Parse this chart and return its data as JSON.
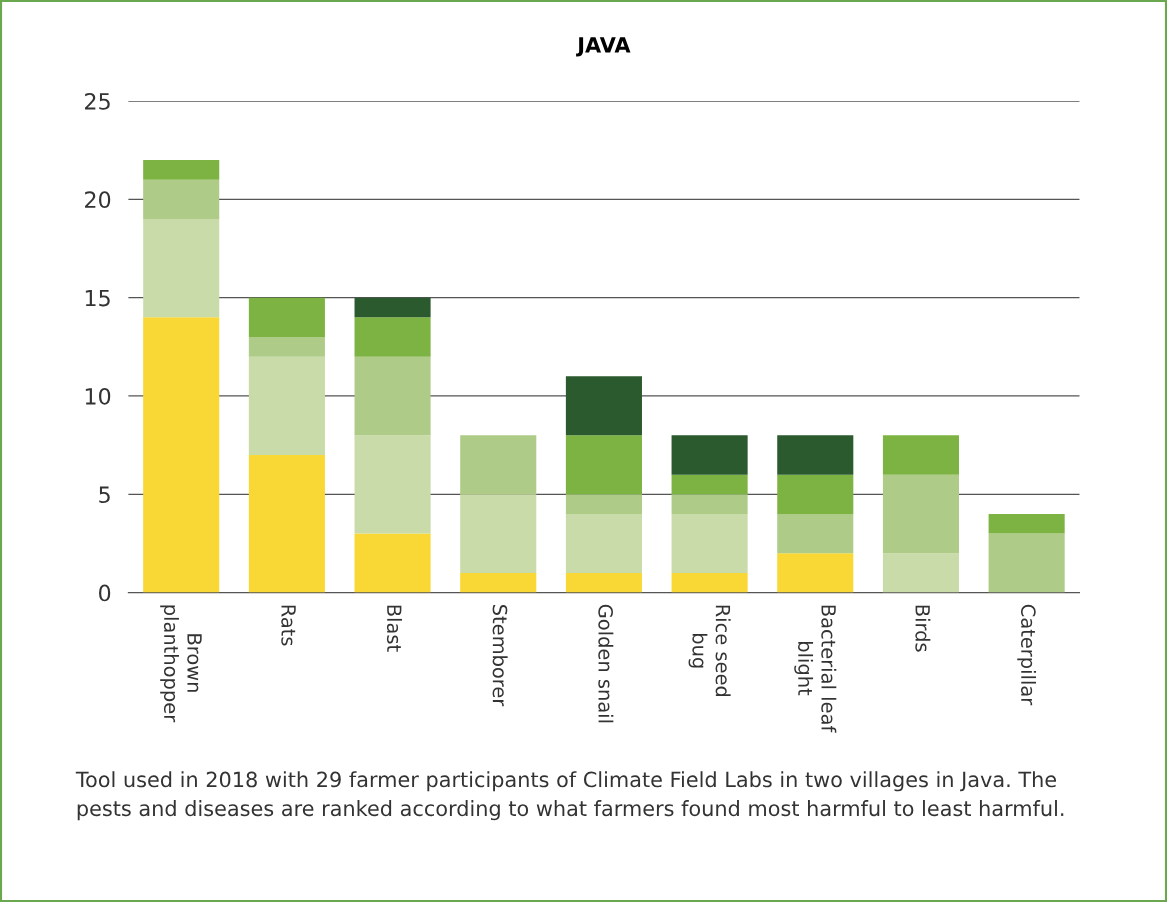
{
  "chart_data": {
    "type": "bar",
    "stacked": true,
    "title": "JAVA",
    "categories": [
      "Brown\nplanthopper",
      "Rats",
      "Blast",
      "Stemborer",
      "Golden snail",
      "Rice seed\nbug",
      "Bacterial leaf\nblight",
      "Birds",
      "Caterpillar"
    ],
    "series": [
      {
        "color": "#f9d835",
        "values": [
          14,
          7,
          3,
          1,
          1,
          1,
          2,
          0,
          0
        ]
      },
      {
        "color": "#c9dba8",
        "values": [
          5,
          5,
          5,
          4,
          3,
          3,
          0,
          2,
          0
        ]
      },
      {
        "color": "#aecb87",
        "values": [
          2,
          1,
          4,
          3,
          1,
          1,
          2,
          4,
          3
        ]
      },
      {
        "color": "#7cb342",
        "values": [
          1,
          2,
          2,
          0,
          3,
          1,
          2,
          2,
          1
        ]
      },
      {
        "color": "#2a5a2e",
        "values": [
          0,
          0,
          1,
          0,
          3,
          2,
          2,
          0,
          0
        ]
      }
    ],
    "ylim": [
      0,
      25
    ],
    "yticks": [
      0,
      5,
      10,
      15,
      20,
      25
    ],
    "grid": "y",
    "legend": false,
    "annotations": [
      "Tool used in 2018 with 29 farmer participants of Climate Field Labs in two villages in Java. The pests and diseases are ranked according to what farmers found most harmful to least harmful."
    ]
  }
}
